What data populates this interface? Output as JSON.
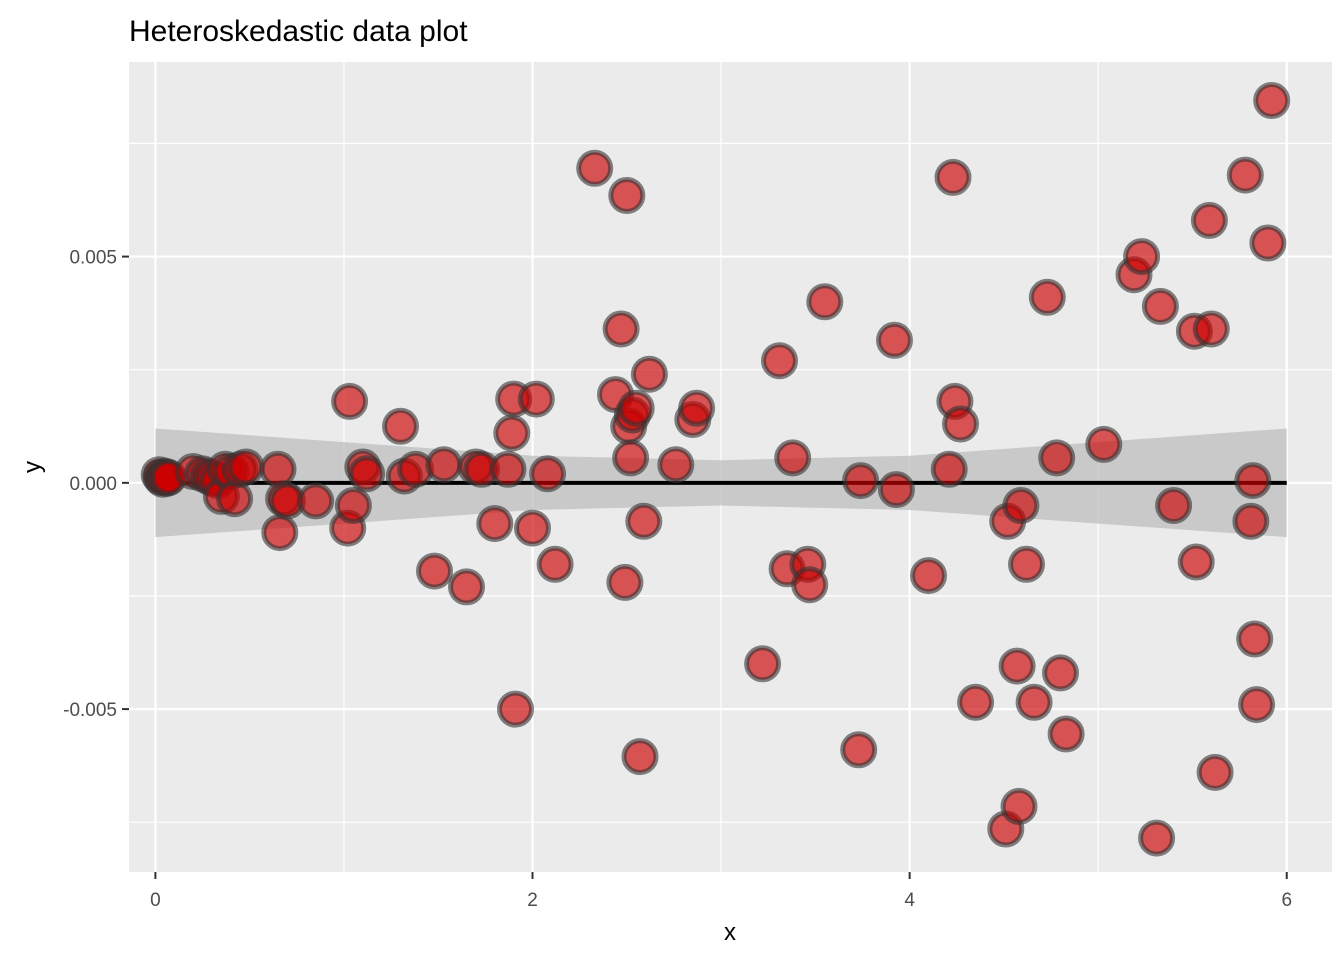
{
  "chart_data": {
    "type": "scatter",
    "title": "Heteroskedastic data plot",
    "xlabel": "x",
    "ylabel": "y",
    "xlim": [
      -0.14,
      6.24
    ],
    "ylim": [
      -0.0086,
      0.0093
    ],
    "x_ticks": [
      0,
      2,
      4,
      6
    ],
    "x_tick_labels": [
      "0",
      "2",
      "4",
      "6"
    ],
    "y_ticks": [
      -0.005,
      0,
      0.005
    ],
    "y_tick_labels": [
      "-0.005",
      "0.000",
      "0.005"
    ],
    "grid": true,
    "legend": "none",
    "colors": {
      "panel": "#ebebeb",
      "grid": "#ffffff",
      "point_fill": "#cc0000",
      "point_outline": "#333333",
      "smooth_line": "#000000",
      "ribbon": "#bdbdbd"
    },
    "points": [
      {
        "x": 0.02,
        "y": 0.00018
      },
      {
        "x": 0.03,
        "y": 0.00012
      },
      {
        "x": 0.04,
        "y": 8e-05
      },
      {
        "x": 0.05,
        "y": 0.00015
      },
      {
        "x": 0.06,
        "y": 0.0001
      },
      {
        "x": 0.07,
        "y": 0.00012
      },
      {
        "x": 0.2,
        "y": 0.00025
      },
      {
        "x": 0.25,
        "y": 0.0002
      },
      {
        "x": 0.28,
        "y": 0.00015
      },
      {
        "x": 0.3,
        "y": 0.0001
      },
      {
        "x": 0.33,
        "y": 5e-05
      },
      {
        "x": 0.35,
        "y": -0.0003
      },
      {
        "x": 0.37,
        "y": 0.0003
      },
      {
        "x": 0.4,
        "y": 0.00025
      },
      {
        "x": 0.42,
        "y": -0.00035
      },
      {
        "x": 0.45,
        "y": 0.0003
      },
      {
        "x": 0.48,
        "y": 0.00035
      },
      {
        "x": 0.65,
        "y": 0.0003
      },
      {
        "x": 0.66,
        "y": -0.0011
      },
      {
        "x": 0.68,
        "y": -0.00035
      },
      {
        "x": 0.7,
        "y": -0.0004
      },
      {
        "x": 0.85,
        "y": -0.0004
      },
      {
        "x": 1.02,
        "y": -0.001
      },
      {
        "x": 1.03,
        "y": 0.0018
      },
      {
        "x": 1.05,
        "y": -0.0005
      },
      {
        "x": 1.1,
        "y": 0.00035
      },
      {
        "x": 1.12,
        "y": 0.0002
      },
      {
        "x": 1.3,
        "y": 0.00125
      },
      {
        "x": 1.32,
        "y": 0.00015
      },
      {
        "x": 1.38,
        "y": 0.0003
      },
      {
        "x": 1.48,
        "y": -0.00195
      },
      {
        "x": 1.53,
        "y": 0.0004
      },
      {
        "x": 1.65,
        "y": -0.0023
      },
      {
        "x": 1.7,
        "y": 0.00035
      },
      {
        "x": 1.73,
        "y": 0.0003
      },
      {
        "x": 1.8,
        "y": -0.0009
      },
      {
        "x": 1.87,
        "y": 0.0003
      },
      {
        "x": 1.89,
        "y": 0.0011
      },
      {
        "x": 1.9,
        "y": 0.00185
      },
      {
        "x": 1.91,
        "y": -0.005
      },
      {
        "x": 2.0,
        "y": -0.001
      },
      {
        "x": 2.02,
        "y": 0.00185
      },
      {
        "x": 2.08,
        "y": 0.0002
      },
      {
        "x": 2.12,
        "y": -0.0018
      },
      {
        "x": 2.33,
        "y": 0.00695
      },
      {
        "x": 2.44,
        "y": 0.00195
      },
      {
        "x": 2.47,
        "y": 0.0034
      },
      {
        "x": 2.49,
        "y": -0.0022
      },
      {
        "x": 2.5,
        "y": 0.00635
      },
      {
        "x": 2.51,
        "y": 0.00125
      },
      {
        "x": 2.52,
        "y": 0.00055
      },
      {
        "x": 2.53,
        "y": 0.0015
      },
      {
        "x": 2.55,
        "y": 0.00165
      },
      {
        "x": 2.57,
        "y": -0.00605
      },
      {
        "x": 2.59,
        "y": -0.00085
      },
      {
        "x": 2.62,
        "y": 0.0024
      },
      {
        "x": 2.76,
        "y": 0.0004
      },
      {
        "x": 2.85,
        "y": 0.0014
      },
      {
        "x": 2.87,
        "y": 0.00165
      },
      {
        "x": 3.22,
        "y": -0.004
      },
      {
        "x": 3.31,
        "y": 0.0027
      },
      {
        "x": 3.35,
        "y": -0.0019
      },
      {
        "x": 3.38,
        "y": 0.00055
      },
      {
        "x": 3.46,
        "y": -0.0018
      },
      {
        "x": 3.47,
        "y": -0.00225
      },
      {
        "x": 3.55,
        "y": 0.004
      },
      {
        "x": 3.73,
        "y": -0.0059
      },
      {
        "x": 3.74,
        "y": 5e-05
      },
      {
        "x": 3.92,
        "y": 0.00315
      },
      {
        "x": 3.93,
        "y": -0.00015
      },
      {
        "x": 4.1,
        "y": -0.00205
      },
      {
        "x": 4.21,
        "y": 0.0003
      },
      {
        "x": 4.23,
        "y": 0.00675
      },
      {
        "x": 4.24,
        "y": 0.0018
      },
      {
        "x": 4.27,
        "y": 0.0013
      },
      {
        "x": 4.35,
        "y": -0.00485
      },
      {
        "x": 4.51,
        "y": -0.00765
      },
      {
        "x": 4.52,
        "y": -0.00085
      },
      {
        "x": 4.57,
        "y": -0.00405
      },
      {
        "x": 4.58,
        "y": -0.00715
      },
      {
        "x": 4.59,
        "y": -0.0005
      },
      {
        "x": 4.62,
        "y": -0.0018
      },
      {
        "x": 4.66,
        "y": -0.00485
      },
      {
        "x": 4.73,
        "y": 0.0041
      },
      {
        "x": 4.78,
        "y": 0.00055
      },
      {
        "x": 4.8,
        "y": -0.0042
      },
      {
        "x": 4.83,
        "y": -0.00555
      },
      {
        "x": 5.03,
        "y": 0.00085
      },
      {
        "x": 5.19,
        "y": 0.0046
      },
      {
        "x": 5.23,
        "y": 0.005
      },
      {
        "x": 5.31,
        "y": -0.00785
      },
      {
        "x": 5.33,
        "y": 0.0039
      },
      {
        "x": 5.4,
        "y": -0.0005
      },
      {
        "x": 5.51,
        "y": 0.00335
      },
      {
        "x": 5.52,
        "y": -0.00175
      },
      {
        "x": 5.59,
        "y": 0.0058
      },
      {
        "x": 5.6,
        "y": 0.0034
      },
      {
        "x": 5.62,
        "y": -0.0064
      },
      {
        "x": 5.78,
        "y": 0.0068
      },
      {
        "x": 5.81,
        "y": -0.00085
      },
      {
        "x": 5.82,
        "y": 5e-05
      },
      {
        "x": 5.83,
        "y": -0.00345
      },
      {
        "x": 5.84,
        "y": -0.0049
      },
      {
        "x": 5.9,
        "y": 0.0053
      },
      {
        "x": 5.92,
        "y": 0.00845
      }
    ],
    "smooth": {
      "x": [
        0,
        6
      ],
      "y": [
        0,
        0
      ],
      "band": [
        {
          "x": 0.0,
          "ymin": -0.0012,
          "ymax": 0.0012
        },
        {
          "x": 1.0,
          "ymin": -0.0009,
          "ymax": 0.0009
        },
        {
          "x": 2.0,
          "ymin": -0.0006,
          "ymax": 0.0006
        },
        {
          "x": 3.0,
          "ymin": -0.0005,
          "ymax": 0.0005
        },
        {
          "x": 4.0,
          "ymin": -0.0006,
          "ymax": 0.0006
        },
        {
          "x": 5.0,
          "ymin": -0.0009,
          "ymax": 0.0009
        },
        {
          "x": 6.0,
          "ymin": -0.0012,
          "ymax": 0.0012
        }
      ]
    }
  }
}
